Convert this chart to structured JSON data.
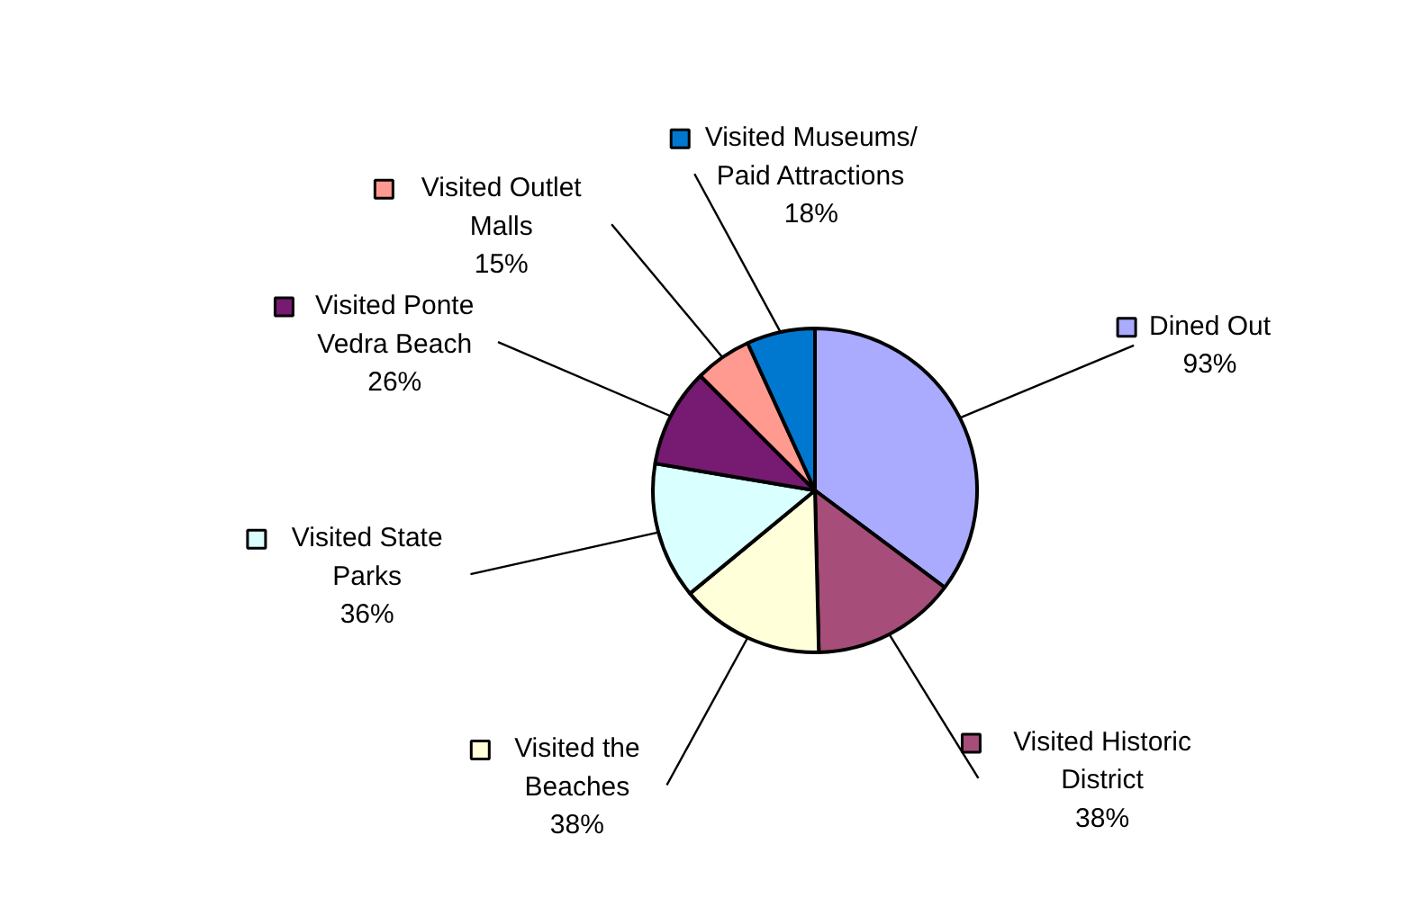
{
  "chart_data": {
    "type": "pie",
    "categories": [
      "Dined Out",
      "Visited Historic District",
      "Visited the Beaches",
      "Visited State Parks",
      "Visited Ponte Vedra Beach",
      "Visited Outlet Malls",
      "Visited Museums/ Paid Attractions"
    ],
    "values": [
      93,
      38,
      38,
      36,
      26,
      15,
      18
    ],
    "value_labels": [
      "93%",
      "38%",
      "38%",
      "36%",
      "26%",
      "15%",
      "18%"
    ],
    "legend": "top left",
    "colors": [
      "#aaaaff",
      "#a64d79",
      "#ffffd9",
      "#d9ffff",
      "#761a72",
      "#ff9a90",
      "#0078d0"
    ]
  }
}
